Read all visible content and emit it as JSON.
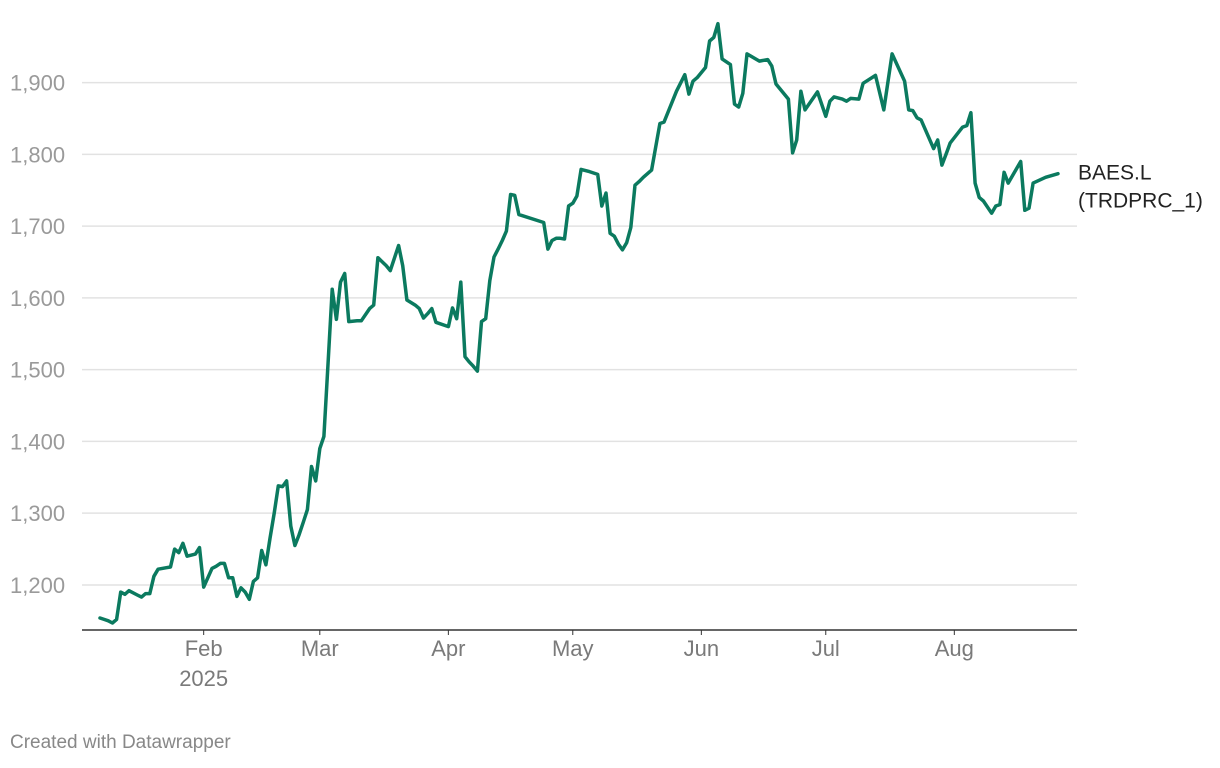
{
  "footer": {
    "credit": "Created with Datawrapper"
  },
  "chart_data": {
    "type": "line",
    "title": "",
    "xlabel": "",
    "ylabel": "",
    "x_range": [
      "2025-01-07",
      "2025-08-26"
    ],
    "ylim": [
      1140,
      1990
    ],
    "y_ticks": [
      {
        "value": 1200,
        "label": "1,200"
      },
      {
        "value": 1300,
        "label": "1,300"
      },
      {
        "value": 1400,
        "label": "1,400"
      },
      {
        "value": 1500,
        "label": "1,500"
      },
      {
        "value": 1600,
        "label": "1,600"
      },
      {
        "value": 1700,
        "label": "1,700"
      },
      {
        "value": 1800,
        "label": "1,800"
      },
      {
        "value": 1900,
        "label": "1,900"
      }
    ],
    "x_ticks": [
      {
        "date": "2025-02-01",
        "label": "Feb",
        "sublabel": "2025"
      },
      {
        "date": "2025-03-01",
        "label": "Mar"
      },
      {
        "date": "2025-04-01",
        "label": "Apr"
      },
      {
        "date": "2025-05-01",
        "label": "May"
      },
      {
        "date": "2025-06-01",
        "label": "Jun"
      },
      {
        "date": "2025-07-01",
        "label": "Jul"
      },
      {
        "date": "2025-08-01",
        "label": "Aug"
      }
    ],
    "grid": true,
    "series": [
      {
        "label_line1": "BAES.L",
        "label_line2": "(TRDPRC_1)",
        "color": "#0b7a5f",
        "points": [
          [
            "2025-01-07",
            1154
          ],
          [
            "2025-01-08",
            1152
          ],
          [
            "2025-01-09",
            1150
          ],
          [
            "2025-01-10",
            1147
          ],
          [
            "2025-01-11",
            1152
          ],
          [
            "2025-01-12",
            1190
          ],
          [
            "2025-01-13",
            1187
          ],
          [
            "2025-01-14",
            1192
          ],
          [
            "2025-01-16",
            1186
          ],
          [
            "2025-01-17",
            1183
          ],
          [
            "2025-01-18",
            1188
          ],
          [
            "2025-01-19",
            1188
          ],
          [
            "2025-01-20",
            1212
          ],
          [
            "2025-01-21",
            1222
          ],
          [
            "2025-01-23",
            1224
          ],
          [
            "2025-01-24",
            1225
          ],
          [
            "2025-01-25",
            1250
          ],
          [
            "2025-01-26",
            1245
          ],
          [
            "2025-01-27",
            1258
          ],
          [
            "2025-01-28",
            1240
          ],
          [
            "2025-01-30",
            1243
          ],
          [
            "2025-01-31",
            1252
          ],
          [
            "2025-02-01",
            1197
          ],
          [
            "2025-02-03",
            1223
          ],
          [
            "2025-02-04",
            1226
          ],
          [
            "2025-02-05",
            1230
          ],
          [
            "2025-02-06",
            1230
          ],
          [
            "2025-02-07",
            1210
          ],
          [
            "2025-02-08",
            1210
          ],
          [
            "2025-02-09",
            1184
          ],
          [
            "2025-02-10",
            1196
          ],
          [
            "2025-02-11",
            1190
          ],
          [
            "2025-02-12",
            1180
          ],
          [
            "2025-02-13",
            1205
          ],
          [
            "2025-02-14",
            1210
          ],
          [
            "2025-02-15",
            1248
          ],
          [
            "2025-02-16",
            1228
          ],
          [
            "2025-02-17",
            1265
          ],
          [
            "2025-02-18",
            1300
          ],
          [
            "2025-02-19",
            1338
          ],
          [
            "2025-02-20",
            1337
          ],
          [
            "2025-02-21",
            1345
          ],
          [
            "2025-02-22",
            1282
          ],
          [
            "2025-02-23",
            1255
          ],
          [
            "2025-02-24",
            1270
          ],
          [
            "2025-02-25",
            1287
          ],
          [
            "2025-02-26",
            1305
          ],
          [
            "2025-02-27",
            1365
          ],
          [
            "2025-02-28",
            1345
          ],
          [
            "2025-03-01",
            1390
          ],
          [
            "2025-03-02",
            1407
          ],
          [
            "2025-03-03",
            1510
          ],
          [
            "2025-03-04",
            1612
          ],
          [
            "2025-03-05",
            1570
          ],
          [
            "2025-03-06",
            1622
          ],
          [
            "2025-03-07",
            1634
          ],
          [
            "2025-03-08",
            1567
          ],
          [
            "2025-03-10",
            1568
          ],
          [
            "2025-03-11",
            1568
          ],
          [
            "2025-03-13",
            1585
          ],
          [
            "2025-03-14",
            1590
          ],
          [
            "2025-03-15",
            1656
          ],
          [
            "2025-03-17",
            1645
          ],
          [
            "2025-03-18",
            1638
          ],
          [
            "2025-03-20",
            1673
          ],
          [
            "2025-03-21",
            1645
          ],
          [
            "2025-03-22",
            1597
          ],
          [
            "2025-03-24",
            1590
          ],
          [
            "2025-03-25",
            1585
          ],
          [
            "2025-03-26",
            1572
          ],
          [
            "2025-03-27",
            1578
          ],
          [
            "2025-03-28",
            1585
          ],
          [
            "2025-03-29",
            1566
          ],
          [
            "2025-04-01",
            1560
          ],
          [
            "2025-04-02",
            1586
          ],
          [
            "2025-04-03",
            1571
          ],
          [
            "2025-04-04",
            1622
          ],
          [
            "2025-04-05",
            1518
          ],
          [
            "2025-04-06",
            1511
          ],
          [
            "2025-04-07",
            1505
          ],
          [
            "2025-04-08",
            1498
          ],
          [
            "2025-04-09",
            1567
          ],
          [
            "2025-04-10",
            1571
          ],
          [
            "2025-04-11",
            1624
          ],
          [
            "2025-04-12",
            1657
          ],
          [
            "2025-04-13",
            1668
          ],
          [
            "2025-04-14",
            1680
          ],
          [
            "2025-04-15",
            1693
          ],
          [
            "2025-04-16",
            1744
          ],
          [
            "2025-04-17",
            1743
          ],
          [
            "2025-04-18",
            1716
          ],
          [
            "2025-04-24",
            1705
          ],
          [
            "2025-04-25",
            1668
          ],
          [
            "2025-04-26",
            1680
          ],
          [
            "2025-04-27",
            1683
          ],
          [
            "2025-04-28",
            1683
          ],
          [
            "2025-04-29",
            1682
          ],
          [
            "2025-04-30",
            1728
          ],
          [
            "2025-05-01",
            1732
          ],
          [
            "2025-05-02",
            1742
          ],
          [
            "2025-05-03",
            1779
          ],
          [
            "2025-05-05",
            1776
          ],
          [
            "2025-05-07",
            1772
          ],
          [
            "2025-05-08",
            1728
          ],
          [
            "2025-05-09",
            1746
          ],
          [
            "2025-05-10",
            1690
          ],
          [
            "2025-05-11",
            1686
          ],
          [
            "2025-05-12",
            1675
          ],
          [
            "2025-05-13",
            1667
          ],
          [
            "2025-05-14",
            1677
          ],
          [
            "2025-05-15",
            1698
          ],
          [
            "2025-05-16",
            1757
          ],
          [
            "2025-05-17",
            1762
          ],
          [
            "2025-05-18",
            1768
          ],
          [
            "2025-05-20",
            1778
          ],
          [
            "2025-05-22",
            1843
          ],
          [
            "2025-05-23",
            1845
          ],
          [
            "2025-05-26",
            1888
          ],
          [
            "2025-05-28",
            1911
          ],
          [
            "2025-05-29",
            1884
          ],
          [
            "2025-05-30",
            1902
          ],
          [
            "2025-05-31",
            1907
          ],
          [
            "2025-06-02",
            1921
          ],
          [
            "2025-06-03",
            1958
          ],
          [
            "2025-06-04",
            1963
          ],
          [
            "2025-06-05",
            1982
          ],
          [
            "2025-06-06",
            1933
          ],
          [
            "2025-06-08",
            1925
          ],
          [
            "2025-06-09",
            1870
          ],
          [
            "2025-06-10",
            1866
          ],
          [
            "2025-06-11",
            1885
          ],
          [
            "2025-06-12",
            1940
          ],
          [
            "2025-06-15",
            1930
          ],
          [
            "2025-06-17",
            1932
          ],
          [
            "2025-06-18",
            1923
          ],
          [
            "2025-06-19",
            1898
          ],
          [
            "2025-06-22",
            1877
          ],
          [
            "2025-06-23",
            1802
          ],
          [
            "2025-06-24",
            1820
          ],
          [
            "2025-06-25",
            1888
          ],
          [
            "2025-06-26",
            1862
          ],
          [
            "2025-06-29",
            1887
          ],
          [
            "2025-07-01",
            1853
          ],
          [
            "2025-07-02",
            1874
          ],
          [
            "2025-07-03",
            1880
          ],
          [
            "2025-07-05",
            1877
          ],
          [
            "2025-07-06",
            1874
          ],
          [
            "2025-07-07",
            1878
          ],
          [
            "2025-07-09",
            1877
          ],
          [
            "2025-07-10",
            1899
          ],
          [
            "2025-07-13",
            1910
          ],
          [
            "2025-07-15",
            1862
          ],
          [
            "2025-07-17",
            1940
          ],
          [
            "2025-07-20",
            1902
          ],
          [
            "2025-07-21",
            1862
          ],
          [
            "2025-07-22",
            1861
          ],
          [
            "2025-07-23",
            1851
          ],
          [
            "2025-07-24",
            1848
          ],
          [
            "2025-07-27",
            1808
          ],
          [
            "2025-07-28",
            1820
          ],
          [
            "2025-07-29",
            1785
          ],
          [
            "2025-07-30",
            1800
          ],
          [
            "2025-07-31",
            1816
          ],
          [
            "2025-08-03",
            1838
          ],
          [
            "2025-08-04",
            1840
          ],
          [
            "2025-08-05",
            1858
          ],
          [
            "2025-08-06",
            1760
          ],
          [
            "2025-08-07",
            1740
          ],
          [
            "2025-08-08",
            1735
          ],
          [
            "2025-08-10",
            1718
          ],
          [
            "2025-08-11",
            1728
          ],
          [
            "2025-08-12",
            1730
          ],
          [
            "2025-08-13",
            1775
          ],
          [
            "2025-08-14",
            1760
          ],
          [
            "2025-08-17",
            1790
          ],
          [
            "2025-08-18",
            1722
          ],
          [
            "2025-08-19",
            1725
          ],
          [
            "2025-08-20",
            1760
          ],
          [
            "2025-08-23",
            1768
          ],
          [
            "2025-08-26",
            1773
          ]
        ]
      }
    ]
  }
}
